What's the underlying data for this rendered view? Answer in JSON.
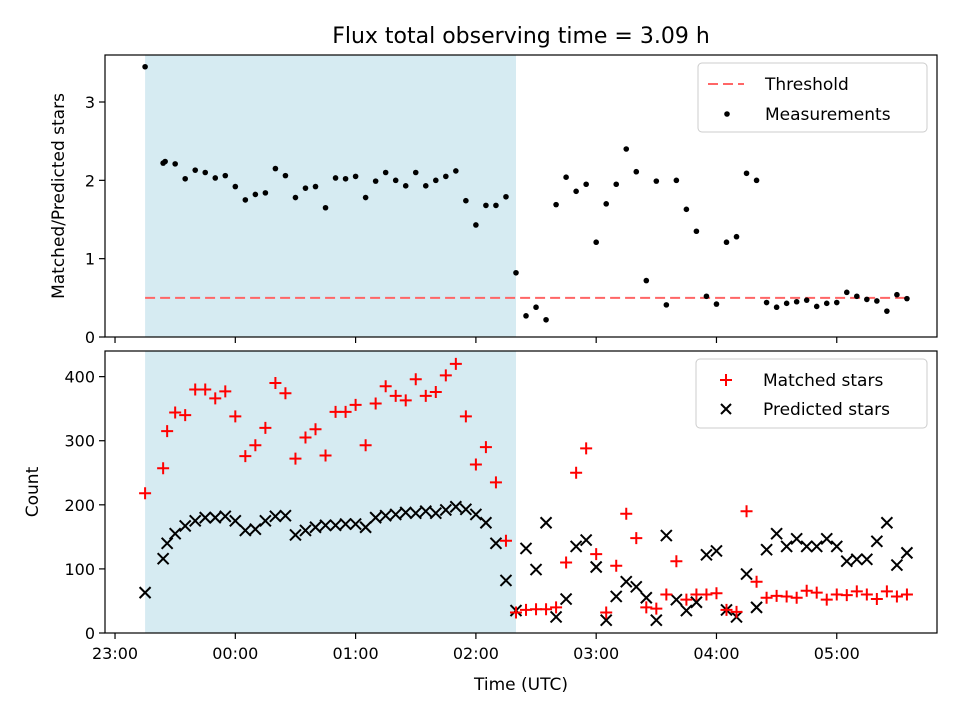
{
  "figure": {
    "title": "Flux total observing time = 3.09 h"
  },
  "chart_data": [
    {
      "type": "scatter",
      "ylabel": "Matched/Predicted stars",
      "xlim": [
        "22:55",
        "05:50"
      ],
      "ylim": [
        0,
        3.6
      ],
      "yticks": [
        0,
        1,
        2,
        3
      ],
      "xticks": [
        "23:00",
        "00:00",
        "01:00",
        "02:00",
        "03:00",
        "04:00",
        "05:00"
      ],
      "shaded_span": [
        "23:15",
        "02:20"
      ],
      "threshold": 0.5,
      "legend": {
        "position": "top-right",
        "entries": [
          "Threshold",
          "Measurements"
        ]
      },
      "series": [
        {
          "name": "Measurements",
          "points": [
            [
              "23:15",
              3.45
            ],
            [
              "23:24",
              2.22
            ],
            [
              "23:25",
              2.24
            ],
            [
              "23:30",
              2.21
            ],
            [
              "23:35",
              2.02
            ],
            [
              "23:40",
              2.13
            ],
            [
              "23:45",
              2.1
            ],
            [
              "23:50",
              2.03
            ],
            [
              "23:55",
              2.06
            ],
            [
              "00:00",
              1.92
            ],
            [
              "00:05",
              1.75
            ],
            [
              "00:10",
              1.82
            ],
            [
              "00:15",
              1.84
            ],
            [
              "00:20",
              2.15
            ],
            [
              "00:25",
              2.06
            ],
            [
              "00:30",
              1.78
            ],
            [
              "00:35",
              1.9
            ],
            [
              "00:40",
              1.92
            ],
            [
              "00:45",
              1.65
            ],
            [
              "00:50",
              2.03
            ],
            [
              "00:55",
              2.02
            ],
            [
              "01:00",
              2.05
            ],
            [
              "01:05",
              1.78
            ],
            [
              "01:10",
              1.99
            ],
            [
              "01:15",
              2.1
            ],
            [
              "01:20",
              2.0
            ],
            [
              "01:25",
              1.93
            ],
            [
              "01:30",
              2.1
            ],
            [
              "01:35",
              1.93
            ],
            [
              "01:40",
              2.0
            ],
            [
              "01:45",
              2.05
            ],
            [
              "01:50",
              2.12
            ],
            [
              "01:55",
              1.74
            ],
            [
              "02:00",
              1.43
            ],
            [
              "02:05",
              1.68
            ],
            [
              "02:10",
              1.68
            ],
            [
              "02:15",
              1.79
            ],
            [
              "02:20",
              0.82
            ],
            [
              "02:25",
              0.27
            ],
            [
              "02:30",
              0.38
            ],
            [
              "02:35",
              0.22
            ],
            [
              "02:40",
              1.69
            ],
            [
              "02:45",
              2.04
            ],
            [
              "02:50",
              1.86
            ],
            [
              "02:55",
              1.95
            ],
            [
              "03:00",
              1.21
            ],
            [
              "03:05",
              1.7
            ],
            [
              "03:10",
              1.95
            ],
            [
              "03:15",
              2.4
            ],
            [
              "03:20",
              2.11
            ],
            [
              "03:25",
              0.72
            ],
            [
              "03:30",
              1.99
            ],
            [
              "03:35",
              0.41
            ],
            [
              "03:40",
              2.0
            ],
            [
              "03:45",
              1.63
            ],
            [
              "03:50",
              1.35
            ],
            [
              "03:55",
              0.52
            ],
            [
              "04:00",
              0.42
            ],
            [
              "04:05",
              1.21
            ],
            [
              "04:10",
              1.28
            ],
            [
              "04:15",
              2.09
            ],
            [
              "04:20",
              2.0
            ],
            [
              "04:25",
              0.44
            ],
            [
              "04:30",
              0.38
            ],
            [
              "04:35",
              0.43
            ],
            [
              "04:40",
              0.45
            ],
            [
              "04:45",
              0.47
            ],
            [
              "04:50",
              0.39
            ],
            [
              "04:55",
              0.43
            ],
            [
              "05:00",
              0.44
            ],
            [
              "05:05",
              0.57
            ],
            [
              "05:10",
              0.52
            ],
            [
              "05:15",
              0.48
            ],
            [
              "05:20",
              0.46
            ],
            [
              "05:25",
              0.33
            ],
            [
              "05:30",
              0.54
            ],
            [
              "05:35",
              0.49
            ]
          ]
        }
      ]
    },
    {
      "type": "scatter",
      "ylabel": "Count",
      "xlabel": "Time (UTC)",
      "xlim": [
        "22:55",
        "05:50"
      ],
      "ylim": [
        0,
        440
      ],
      "yticks": [
        0,
        100,
        200,
        300,
        400
      ],
      "xticks": [
        "23:00",
        "00:00",
        "01:00",
        "02:00",
        "03:00",
        "04:00",
        "05:00"
      ],
      "shaded_span": [
        "23:15",
        "02:20"
      ],
      "legend": {
        "position": "top-right",
        "entries": [
          "Matched stars",
          "Predicted stars"
        ]
      },
      "series": [
        {
          "name": "Matched stars",
          "points": [
            [
              "23:15",
              218
            ],
            [
              "23:24",
              257
            ],
            [
              "23:26",
              315
            ],
            [
              "23:30",
              344
            ],
            [
              "23:35",
              340
            ],
            [
              "23:40",
              380
            ],
            [
              "23:45",
              380
            ],
            [
              "23:50",
              366
            ],
            [
              "23:55",
              377
            ],
            [
              "00:00",
              338
            ],
            [
              "00:05",
              276
            ],
            [
              "00:10",
              293
            ],
            [
              "00:15",
              320
            ],
            [
              "00:20",
              390
            ],
            [
              "00:25",
              374
            ],
            [
              "00:30",
              272
            ],
            [
              "00:35",
              305
            ],
            [
              "00:40",
              318
            ],
            [
              "00:45",
              277
            ],
            [
              "00:50",
              345
            ],
            [
              "00:55",
              345
            ],
            [
              "01:00",
              356
            ],
            [
              "01:05",
              293
            ],
            [
              "01:10",
              358
            ],
            [
              "01:15",
              385
            ],
            [
              "01:20",
              370
            ],
            [
              "01:25",
              363
            ],
            [
              "01:30",
              396
            ],
            [
              "01:35",
              370
            ],
            [
              "01:40",
              376
            ],
            [
              "01:45",
              402
            ],
            [
              "01:50",
              420
            ],
            [
              "01:55",
              338
            ],
            [
              "02:00",
              263
            ],
            [
              "02:05",
              290
            ],
            [
              "02:10",
              235
            ],
            [
              "02:15",
              144
            ],
            [
              "02:20",
              32
            ],
            [
              "02:25",
              36
            ],
            [
              "02:30",
              37
            ],
            [
              "02:35",
              37
            ],
            [
              "02:40",
              40
            ],
            [
              "02:45",
              110
            ],
            [
              "02:50",
              250
            ],
            [
              "02:55",
              288
            ],
            [
              "03:00",
              123
            ],
            [
              "03:05",
              32
            ],
            [
              "03:10",
              105
            ],
            [
              "03:15",
              186
            ],
            [
              "03:20",
              148
            ],
            [
              "03:25",
              40
            ],
            [
              "03:30",
              38
            ],
            [
              "03:35",
              60
            ],
            [
              "03:40",
              112
            ],
            [
              "03:45",
              52
            ],
            [
              "03:50",
              60
            ],
            [
              "03:55",
              60
            ],
            [
              "04:00",
              62
            ],
            [
              "04:05",
              36
            ],
            [
              "04:10",
              33
            ],
            [
              "04:15",
              190
            ],
            [
              "04:20",
              80
            ],
            [
              "04:25",
              55
            ],
            [
              "04:30",
              58
            ],
            [
              "04:35",
              57
            ],
            [
              "04:40",
              55
            ],
            [
              "04:45",
              66
            ],
            [
              "04:50",
              63
            ],
            [
              "04:55",
              52
            ],
            [
              "05:00",
              60
            ],
            [
              "05:05",
              59
            ],
            [
              "05:10",
              65
            ],
            [
              "05:15",
              60
            ],
            [
              "05:20",
              53
            ],
            [
              "05:25",
              65
            ],
            [
              "05:30",
              57
            ],
            [
              "05:35",
              60
            ]
          ]
        },
        {
          "name": "Predicted stars",
          "points": [
            [
              "23:15",
              63
            ],
            [
              "23:24",
              116
            ],
            [
              "23:26",
              140
            ],
            [
              "23:30",
              155
            ],
            [
              "23:35",
              167
            ],
            [
              "23:40",
              175
            ],
            [
              "23:45",
              180
            ],
            [
              "23:50",
              180
            ],
            [
              "23:55",
              182
            ],
            [
              "00:00",
              175
            ],
            [
              "00:05",
              160
            ],
            [
              "00:10",
              162
            ],
            [
              "00:15",
              175
            ],
            [
              "00:20",
              182
            ],
            [
              "00:25",
              183
            ],
            [
              "00:30",
              153
            ],
            [
              "00:35",
              160
            ],
            [
              "00:40",
              165
            ],
            [
              "00:45",
              168
            ],
            [
              "00:50",
              168
            ],
            [
              "00:55",
              170
            ],
            [
              "01:00",
              170
            ],
            [
              "01:05",
              165
            ],
            [
              "01:10",
              180
            ],
            [
              "01:15",
              183
            ],
            [
              "01:20",
              185
            ],
            [
              "01:25",
              188
            ],
            [
              "01:30",
              187
            ],
            [
              "01:35",
              190
            ],
            [
              "01:40",
              187
            ],
            [
              "01:45",
              192
            ],
            [
              "01:50",
              197
            ],
            [
              "01:55",
              193
            ],
            [
              "02:00",
              185
            ],
            [
              "02:05",
              172
            ],
            [
              "02:10",
              140
            ],
            [
              "02:15",
              82
            ],
            [
              "02:20",
              35
            ],
            [
              "02:25",
              132
            ],
            [
              "02:30",
              99
            ],
            [
              "02:35",
              172
            ],
            [
              "02:40",
              25
            ],
            [
              "02:45",
              53
            ],
            [
              "02:50",
              135
            ],
            [
              "02:55",
              145
            ],
            [
              "03:00",
              103
            ],
            [
              "03:05",
              20
            ],
            [
              "03:10",
              57
            ],
            [
              "03:15",
              80
            ],
            [
              "03:20",
              72
            ],
            [
              "03:25",
              55
            ],
            [
              "03:30",
              20
            ],
            [
              "03:35",
              152
            ],
            [
              "03:40",
              52
            ],
            [
              "03:45",
              35
            ],
            [
              "03:50",
              48
            ],
            [
              "03:55",
              122
            ],
            [
              "04:00",
              128
            ],
            [
              "04:05",
              36
            ],
            [
              "04:10",
              25
            ],
            [
              "04:15",
              92
            ],
            [
              "04:20",
              40
            ],
            [
              "04:25",
              130
            ],
            [
              "04:30",
              155
            ],
            [
              "04:35",
              135
            ],
            [
              "04:40",
              147
            ],
            [
              "04:45",
              135
            ],
            [
              "04:50",
              135
            ],
            [
              "04:55",
              147
            ],
            [
              "05:00",
              135
            ],
            [
              "05:05",
              112
            ],
            [
              "05:10",
              115
            ],
            [
              "05:15",
              115
            ],
            [
              "05:20",
              143
            ],
            [
              "05:25",
              172
            ],
            [
              "05:30",
              106
            ],
            [
              "05:35",
              125
            ]
          ]
        }
      ]
    }
  ]
}
